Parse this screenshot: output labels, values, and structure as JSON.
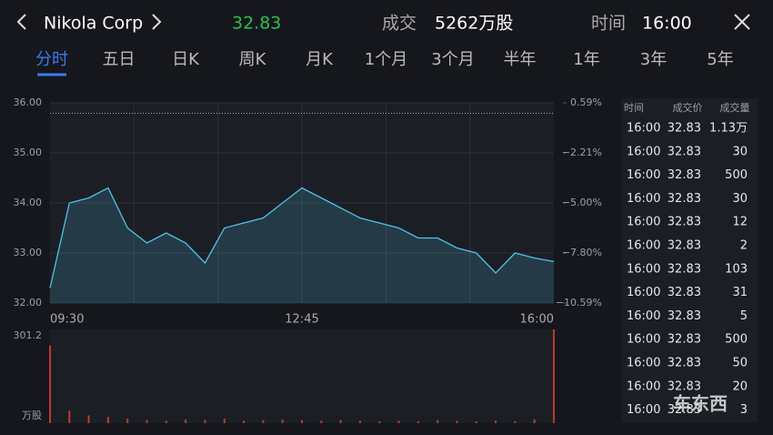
{
  "header": {
    "title": "Nikola Corp",
    "price": "32.83",
    "volume_label": "成交",
    "volume": "5262万股",
    "time_label": "时间",
    "time": "16:00"
  },
  "tabs": [
    "分时",
    "五日",
    "日K",
    "周K",
    "月K",
    "1个月",
    "3个月",
    "半年",
    "1年",
    "3年",
    "5年"
  ],
  "chart_data": [
    {
      "type": "line",
      "color": "#4fc3e8",
      "prev_close": 35.79,
      "categories": [
        "09:30",
        null,
        null,
        null,
        null,
        null,
        null,
        null,
        null,
        null,
        null,
        null,
        null,
        "12:45",
        null,
        null,
        null,
        null,
        null,
        null,
        null,
        null,
        null,
        null,
        null,
        null,
        "16:00"
      ],
      "values": [
        32.3,
        34.0,
        34.1,
        34.3,
        33.5,
        33.2,
        33.4,
        33.2,
        32.8,
        33.5,
        33.6,
        33.7,
        34.0,
        34.3,
        34.1,
        33.9,
        33.7,
        33.6,
        33.5,
        33.3,
        33.3,
        33.1,
        33.0,
        32.6,
        33.0,
        32.9,
        32.83
      ],
      "ylim": [
        32,
        36
      ],
      "yticks": [
        {
          "value": 32,
          "label": "32.00"
        },
        {
          "value": 33,
          "label": "33.00"
        },
        {
          "value": 34,
          "label": "34.00"
        },
        {
          "value": 35,
          "label": "35.00"
        },
        {
          "value": 36,
          "label": "36.00"
        }
      ],
      "y2lim": [
        -10.59,
        0.59
      ],
      "y2ticks": [
        {
          "value": -10.59,
          "label": "−10.59%"
        },
        {
          "value": -7.8,
          "label": "−7.80%"
        },
        {
          "value": -5,
          "label": "−5.00%"
        },
        {
          "value": -2.21,
          "label": "−2.21%"
        },
        {
          "value": 0.59,
          "label": "0.59%"
        }
      ]
    },
    {
      "type": "bar",
      "color": "#c0392b",
      "y_label": "万股",
      "values": [
        250,
        40,
        25,
        20,
        15,
        10,
        8,
        12,
        10,
        15,
        8,
        10,
        12,
        10,
        8,
        10,
        8,
        6,
        8,
        6,
        10,
        8,
        6,
        8,
        6,
        12,
        301.2
      ],
      "ylim": [
        0,
        301.2
      ],
      "yticks": [
        301.2
      ]
    }
  ],
  "table": {
    "columns": [
      "时间",
      "成交价",
      "成交量"
    ],
    "rows": [
      [
        "16:00",
        "32.83",
        "1.13万"
      ],
      [
        "16:00",
        "32.83",
        "30"
      ],
      [
        "16:00",
        "32.83",
        "500"
      ],
      [
        "16:00",
        "32.83",
        "30"
      ],
      [
        "16:00",
        "32.83",
        "12"
      ],
      [
        "16:00",
        "32.83",
        "2"
      ],
      [
        "16:00",
        "32.83",
        "103"
      ],
      [
        "16:00",
        "32.83",
        "31"
      ],
      [
        "16:00",
        "32.83",
        "5"
      ],
      [
        "16:00",
        "32.83",
        "500"
      ],
      [
        "16:00",
        "32.83",
        "50"
      ],
      [
        "16:00",
        "32.83",
        "20"
      ],
      [
        "16:00",
        "32.83",
        "3"
      ]
    ]
  },
  "watermark": "车东西"
}
